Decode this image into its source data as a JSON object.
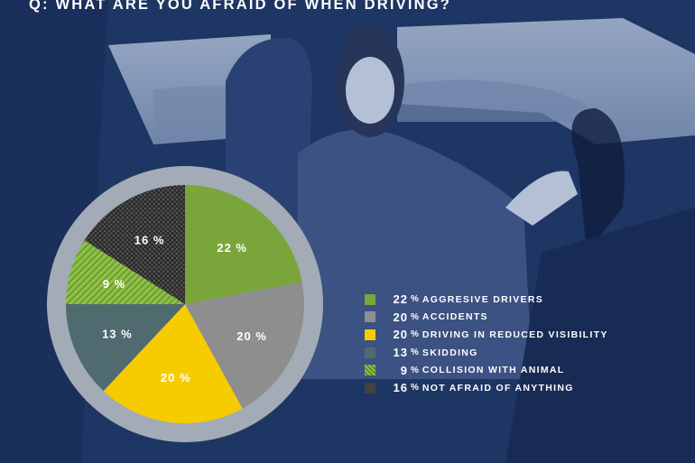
{
  "question": "Q:  WHAT ARE YOU AFRAID OF WHEN DRIVING?",
  "chart_data": {
    "type": "pie",
    "title": "Q:  WHAT ARE YOU AFRAID OF WHEN DRIVING?",
    "unit": "%",
    "slices": [
      {
        "label": "AGGRESIVE DRIVERS",
        "value": 22,
        "color": "#7aa53a",
        "pattern": "solid"
      },
      {
        "label": "ACCIDENTS",
        "value": 20,
        "color": "#8e8e8e",
        "pattern": "solid"
      },
      {
        "label": "DRIVING IN REDUCED VISIBILITY",
        "value": 20,
        "color": "#f6cc00",
        "pattern": "solid"
      },
      {
        "label": "SKIDDING",
        "value": 13,
        "color": "#4f6b6f",
        "pattern": "solid"
      },
      {
        "label": "COLLISION WITH ANIMAL",
        "value": 9,
        "color": "#7aa53a",
        "pattern": "hatched"
      },
      {
        "label": "NOT AFRAID OF ANYTHING",
        "value": 16,
        "color": "#3a3a3a",
        "pattern": "crosshatch"
      }
    ],
    "legend_position": "right"
  }
}
